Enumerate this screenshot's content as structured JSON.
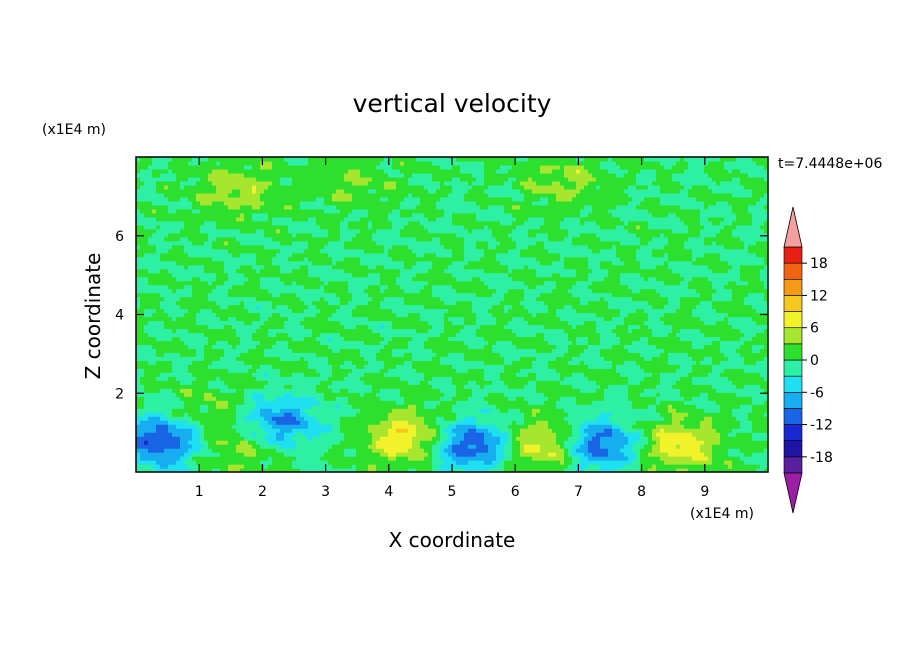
{
  "chart_data": {
    "type": "heatmap",
    "title": "vertical velocity",
    "xlabel": "X coordinate",
    "ylabel": "Z coordinate",
    "x_unit": "(x1E4 m)",
    "y_unit": "(x1E4 m)",
    "time_label": "t=7.4448e+06",
    "xlim": [
      0,
      10
    ],
    "ylim": [
      0,
      8
    ],
    "xticks": [
      "1",
      "2",
      "3",
      "4",
      "5",
      "6",
      "7",
      "8",
      "9"
    ],
    "yticks": [
      "2",
      "4",
      "6"
    ],
    "colorbar": {
      "levels": [
        -21,
        -18,
        -15,
        -12,
        -9,
        -6,
        -3,
        0,
        3,
        6,
        9,
        12,
        15,
        18,
        21
      ],
      "tick_labels": [
        "18",
        "12",
        "6",
        "0",
        "-6",
        "-12",
        "-18"
      ],
      "colors": [
        "#9c1ea6",
        "#5b1fa1",
        "#2014a6",
        "#1a28d2",
        "#1a64e6",
        "#16aef0",
        "#1ee0f0",
        "#2ef0a4",
        "#2ee02e",
        "#a6e62e",
        "#f2f22a",
        "#f4c81e",
        "#f49a14",
        "#f26414",
        "#e82014",
        "#f4a0a0"
      ],
      "extend": "both"
    },
    "features": [
      {
        "x": 0.4,
        "z": 0.8,
        "w": -12
      },
      {
        "x": 1.2,
        "z": 1.6,
        "w": 3
      },
      {
        "x": 1.6,
        "z": 0.6,
        "w": 4
      },
      {
        "x": 2.3,
        "z": 1.3,
        "w": -9
      },
      {
        "x": 4.3,
        "z": 0.9,
        "w": 9
      },
      {
        "x": 5.3,
        "z": 0.7,
        "w": -12
      },
      {
        "x": 6.5,
        "z": 0.7,
        "w": 9
      },
      {
        "x": 7.3,
        "z": 0.7,
        "w": -12
      },
      {
        "x": 8.6,
        "z": 0.7,
        "w": 8
      },
      {
        "x": 1.6,
        "z": 7.2,
        "w": 5
      },
      {
        "x": 6.8,
        "z": 7.4,
        "w": 4
      },
      {
        "x": 3.4,
        "z": 7.3,
        "w": 3
      }
    ]
  }
}
